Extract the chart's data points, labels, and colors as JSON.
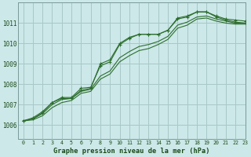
{
  "title": "Graphe pression niveau de la mer (hPa)",
  "bg_color": "#cce8e8",
  "grid_color": "#a8c8c8",
  "line_color": "#2d6e2d",
  "xlim": [
    -0.5,
    23
  ],
  "ylim": [
    1005.3,
    1012.0
  ],
  "yticks": [
    1006,
    1007,
    1008,
    1009,
    1010,
    1011
  ],
  "xticks": [
    0,
    1,
    2,
    3,
    4,
    5,
    6,
    7,
    8,
    9,
    10,
    11,
    12,
    13,
    14,
    15,
    16,
    17,
    18,
    19,
    20,
    21,
    22,
    23
  ],
  "series_with_markers": [
    [
      1006.2,
      1006.3,
      1006.6,
      1007.1,
      1007.3,
      1007.3,
      1007.7,
      1007.8,
      1009.0,
      1009.2,
      1010.0,
      1010.3,
      1010.45,
      1010.45,
      1010.45,
      1010.65,
      1011.25,
      1011.35,
      1011.55,
      1011.55,
      1011.35,
      1011.2,
      1011.15,
      1011.1
    ],
    [
      1006.2,
      1006.35,
      1006.65,
      1007.1,
      1007.35,
      1007.35,
      1007.8,
      1007.85,
      1008.9,
      1009.1,
      1009.95,
      1010.25,
      1010.45,
      1010.45,
      1010.45,
      1010.65,
      1011.2,
      1011.3,
      1011.55,
      1011.55,
      1011.3,
      1011.15,
      1011.05,
      1011.0
    ]
  ],
  "series_smooth": [
    [
      1006.2,
      1006.3,
      1006.55,
      1007.0,
      1007.25,
      1007.3,
      1007.65,
      1007.75,
      1008.4,
      1008.65,
      1009.3,
      1009.6,
      1009.85,
      1009.95,
      1010.1,
      1010.35,
      1010.9,
      1011.05,
      1011.3,
      1011.35,
      1011.2,
      1011.1,
      1011.0,
      1011.0
    ],
    [
      1006.2,
      1006.25,
      1006.45,
      1006.85,
      1007.1,
      1007.2,
      1007.55,
      1007.65,
      1008.25,
      1008.5,
      1009.1,
      1009.4,
      1009.65,
      1009.75,
      1009.95,
      1010.2,
      1010.75,
      1010.9,
      1011.2,
      1011.25,
      1011.1,
      1011.0,
      1010.95,
      1010.95
    ]
  ]
}
